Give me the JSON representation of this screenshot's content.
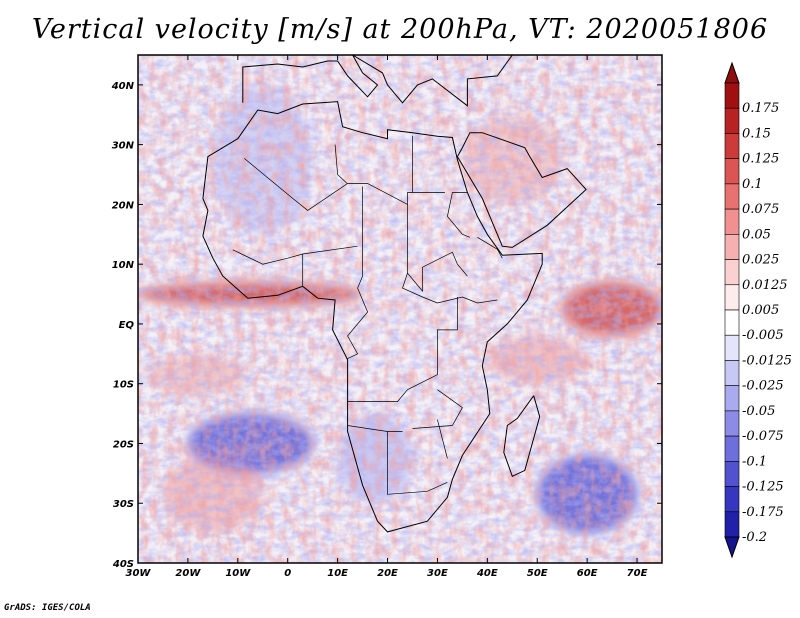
{
  "title": "Vertical velocity [m/s] at 200hPa, VT: 2020051806",
  "credit": "GrADS: IGES/COLA",
  "chart_data": {
    "type": "heatmap",
    "title": "Vertical velocity [m/s] at 200hPa, VT: 2020051806",
    "variable": "Vertical velocity",
    "units": "m/s",
    "level": "200hPa",
    "valid_time": "2020051806",
    "xlim": [
      -30,
      75
    ],
    "ylim": [
      -40,
      45
    ],
    "x_ticks": [
      {
        "value": -30,
        "label": "30W"
      },
      {
        "value": -20,
        "label": "20W"
      },
      {
        "value": -10,
        "label": "10W"
      },
      {
        "value": 0,
        "label": "0"
      },
      {
        "value": 10,
        "label": "10E"
      },
      {
        "value": 20,
        "label": "20E"
      },
      {
        "value": 30,
        "label": "30E"
      },
      {
        "value": 40,
        "label": "40E"
      },
      {
        "value": 50,
        "label": "50E"
      },
      {
        "value": 60,
        "label": "60E"
      },
      {
        "value": 70,
        "label": "70E"
      }
    ],
    "y_ticks": [
      {
        "value": 40,
        "label": "40N"
      },
      {
        "value": 30,
        "label": "30N"
      },
      {
        "value": 20,
        "label": "20N"
      },
      {
        "value": 10,
        "label": "10N"
      },
      {
        "value": 0,
        "label": "EQ"
      },
      {
        "value": -10,
        "label": "10S"
      },
      {
        "value": -20,
        "label": "20S"
      },
      {
        "value": -30,
        "label": "30S"
      },
      {
        "value": -40,
        "label": "40S"
      }
    ],
    "colorbar": {
      "levels": [
        {
          "label": "0.175",
          "color": "#a01010"
        },
        {
          "label": "0.15",
          "color": "#b82222"
        },
        {
          "label": "0.125",
          "color": "#cc3a3a"
        },
        {
          "label": "0.1",
          "color": "#dc5454"
        },
        {
          "label": "0.075",
          "color": "#e87272"
        },
        {
          "label": "0.05",
          "color": "#f09090"
        },
        {
          "label": "0.025",
          "color": "#f6b0b0"
        },
        {
          "label": "0.0125",
          "color": "#fad0d0"
        },
        {
          "label": "0.005",
          "color": "#fdecec"
        },
        {
          "label": "-0.005",
          "color": "#ffffff"
        },
        {
          "label": "-0.0125",
          "color": "#e4e4fa"
        },
        {
          "label": "-0.025",
          "color": "#c8c8f4"
        },
        {
          "label": "-0.05",
          "color": "#aaaaee"
        },
        {
          "label": "-0.075",
          "color": "#8c8ce6"
        },
        {
          "label": "-0.1",
          "color": "#6e6edc"
        },
        {
          "label": "-0.125",
          "color": "#5252d0"
        },
        {
          "label": "-0.175",
          "color": "#3636c0"
        },
        {
          "label": "-0.2",
          "color": "#2020a8"
        }
      ],
      "top_color": "#8e0d0d",
      "bottom_color": "#14148e"
    },
    "features": [
      {
        "name": "equatorial-atlantic-ascent",
        "lon": [
          -30,
          15
        ],
        "lat": [
          3,
          7
        ],
        "sign": "positive"
      },
      {
        "name": "indian-ocean-ascent",
        "lon": [
          55,
          75
        ],
        "lat": [
          -2,
          7
        ],
        "sign": "positive"
      },
      {
        "name": "south-indian-ocean-descent",
        "lon": [
          50,
          70
        ],
        "lat": [
          -35,
          -22
        ],
        "sign": "negative"
      },
      {
        "name": "south-atlantic-descent",
        "lon": [
          -20,
          5
        ],
        "lat": [
          -25,
          -15
        ],
        "sign": "negative"
      }
    ]
  }
}
